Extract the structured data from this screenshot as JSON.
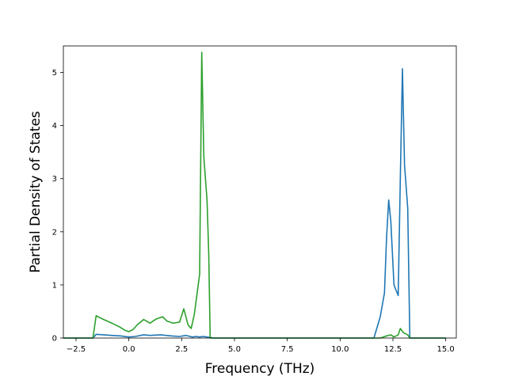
{
  "chart_data": {
    "type": "line",
    "title": "",
    "xlabel": "Frequency (THz)",
    "ylabel": "Partial Density of States",
    "xlim": [
      -3.1,
      15.5
    ],
    "ylim": [
      0,
      5.5
    ],
    "x_ticks": [
      -2.5,
      0.0,
      2.5,
      5.0,
      7.5,
      10.0,
      12.5,
      15.0
    ],
    "x_tick_labels": [
      "−2.5",
      "0.0",
      "2.5",
      "5.0",
      "7.5",
      "10.0",
      "12.5",
      "15.0"
    ],
    "y_ticks": [
      0,
      1,
      2,
      3,
      4,
      5
    ],
    "y_tick_labels": [
      "0",
      "1",
      "2",
      "3",
      "4",
      "5"
    ],
    "grid": false,
    "legend": "none",
    "series": [
      {
        "color": "#1f77b4",
        "x": [
          -3.1,
          -1.7,
          -1.55,
          -1.2,
          -0.8,
          -0.4,
          0.0,
          0.3,
          0.7,
          1.0,
          1.5,
          2.0,
          2.4,
          2.7,
          3.0,
          3.2,
          3.35,
          3.5,
          3.7,
          3.85,
          4.0,
          11.6,
          11.9,
          12.1,
          12.2,
          12.3,
          12.4,
          12.55,
          12.75,
          12.85,
          12.95,
          13.05,
          13.2,
          13.3,
          15.0
        ],
        "y": [
          0,
          0,
          0.07,
          0.06,
          0.05,
          0.04,
          0.02,
          0.03,
          0.06,
          0.05,
          0.06,
          0.04,
          0.03,
          0.05,
          0.02,
          0.03,
          0.02,
          0.03,
          0.02,
          0.01,
          0,
          0,
          0.4,
          0.85,
          1.9,
          2.6,
          2.2,
          1.0,
          0.8,
          3.0,
          5.07,
          3.25,
          2.45,
          0,
          0
        ]
      },
      {
        "color": "#2ca02c",
        "x": [
          -3.1,
          -1.7,
          -1.55,
          -1.2,
          -0.8,
          -0.4,
          -0.2,
          0.0,
          0.2,
          0.4,
          0.7,
          1.0,
          1.3,
          1.6,
          1.8,
          2.1,
          2.4,
          2.6,
          2.8,
          2.95,
          3.1,
          3.25,
          3.35,
          3.45,
          3.55,
          3.7,
          3.78,
          3.85,
          11.9,
          12.2,
          12.4,
          12.55,
          12.75,
          12.85,
          13.0,
          13.2,
          13.3,
          15.0
        ],
        "y": [
          0,
          0,
          0.42,
          0.35,
          0.28,
          0.2,
          0.15,
          0.12,
          0.16,
          0.25,
          0.35,
          0.28,
          0.36,
          0.4,
          0.32,
          0.28,
          0.3,
          0.55,
          0.25,
          0.18,
          0.45,
          0.9,
          1.2,
          5.38,
          3.4,
          2.6,
          1.6,
          0,
          0,
          0.04,
          0.06,
          0.02,
          0.06,
          0.18,
          0.1,
          0.06,
          0,
          0
        ]
      }
    ]
  }
}
